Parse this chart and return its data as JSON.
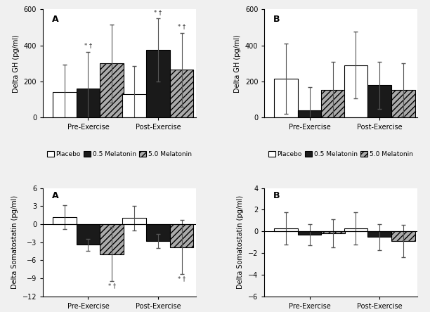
{
  "gh_A": {
    "title": "A",
    "ylabel": "Delta GH (pg/ml)",
    "ylim": [
      0,
      600
    ],
    "yticks": [
      0,
      200,
      400,
      600
    ],
    "groups": [
      "Pre-Exercise",
      "Post-Exercise"
    ],
    "placebo": [
      140,
      130
    ],
    "mel05": [
      160,
      375
    ],
    "mel50": [
      300,
      265
    ],
    "placebo_err": [
      155,
      155
    ],
    "mel05_err": [
      205,
      175
    ],
    "mel50_err": [
      215,
      205
    ],
    "sig_mel05": [
      true,
      true
    ],
    "sig_mel50": [
      false,
      true
    ]
  },
  "gh_B": {
    "title": "B",
    "ylabel": "Delta GH (pg/ml)",
    "ylim": [
      0,
      600
    ],
    "yticks": [
      0,
      200,
      400,
      600
    ],
    "groups": [
      "Pre-Exercise",
      "Post-Exercise"
    ],
    "placebo": [
      215,
      290
    ],
    "mel05": [
      40,
      180
    ],
    "mel50": [
      155,
      155
    ],
    "placebo_err": [
      195,
      185
    ],
    "mel05_err": [
      130,
      130
    ],
    "mel50_err": [
      155,
      145
    ],
    "sig_mel05": [
      false,
      false
    ],
    "sig_mel50": [
      false,
      false
    ]
  },
  "som_A": {
    "title": "A",
    "ylabel": "Delta Somatostatin (pg/ml)",
    "ylim": [
      -12,
      6
    ],
    "yticks": [
      -12,
      -9,
      -6,
      -3,
      0,
      3,
      6
    ],
    "groups": [
      "Pre-Exercise",
      "Post-Exercise"
    ],
    "placebo": [
      1.2,
      1.0
    ],
    "mel05": [
      -3.4,
      -2.8
    ],
    "mel50": [
      -5.0,
      -3.8
    ],
    "placebo_err": [
      2.0,
      2.0
    ],
    "mel05_err": [
      1.0,
      1.2
    ],
    "mel50_err": [
      4.5,
      4.5
    ],
    "sig_mel50": [
      true,
      true
    ]
  },
  "som_B": {
    "title": "B",
    "ylabel": "Delta Somatostatin (pg/ml)",
    "ylim": [
      -6,
      4
    ],
    "yticks": [
      -6,
      -4,
      -2,
      0,
      2,
      4
    ],
    "groups": [
      "Pre-Exercise",
      "Post-Exercise"
    ],
    "placebo": [
      0.3,
      0.3
    ],
    "mel05": [
      -0.3,
      -0.5
    ],
    "mel50": [
      -0.2,
      -0.9
    ],
    "placebo_err": [
      1.5,
      1.5
    ],
    "mel05_err": [
      1.0,
      1.2
    ],
    "mel50_err": [
      1.3,
      1.5
    ],
    "sig_mel50": [
      false,
      false
    ]
  },
  "bar_width": 0.22,
  "colors": {
    "placebo": "#ffffff",
    "mel05": "#1a1a1a",
    "mel50": "#aaaaaa"
  },
  "edgecolor": "#000000",
  "hatch_mel50": "////",
  "legend_labels": [
    "Placebo",
    "0.5 Melatonin",
    "5.0 Melatonin"
  ],
  "fontsize_tick": 7,
  "fontsize_label": 7,
  "fontsize_title": 9,
  "fontsize_legend": 6.5,
  "hspace": 0.65,
  "wspace": 0.45
}
